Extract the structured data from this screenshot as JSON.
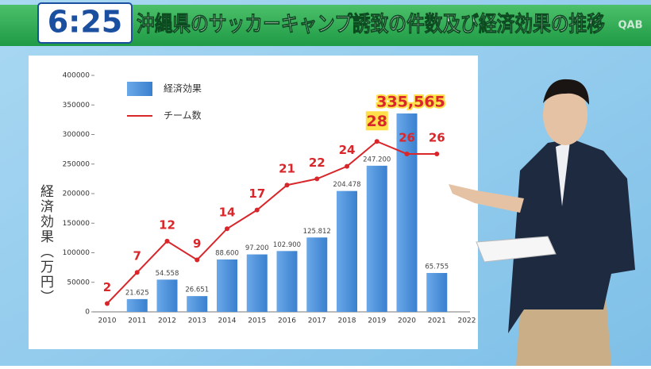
{
  "overlay": {
    "clock": "6:25",
    "logo": "QAB"
  },
  "chart_data": {
    "type": "bar-line",
    "title": "沖縄県のサッカーキャンプ誘致の件数及び経済効果の推移",
    "y_label": "経済効果（万円）",
    "categories": [
      "2010",
      "2011",
      "2012",
      "2013",
      "2014",
      "2015",
      "2016",
      "2017",
      "2018",
      "2019",
      "2020",
      "2021",
      "2022"
    ],
    "series": [
      {
        "name": "経済効果",
        "color": "#4a8fd8",
        "values": [
          null,
          21625,
          54558,
          26651,
          88600,
          97200,
          102900,
          125812,
          204478,
          247200,
          335565,
          65755,
          null
        ],
        "value_labels": [
          null,
          "21.625",
          "54.558",
          "26.651",
          "88.600",
          "97.200",
          "102.900",
          "125.812",
          "204.478",
          "247.200",
          "335,565",
          "65.755",
          null
        ]
      },
      {
        "name": "チーム数",
        "color": "#d8262a",
        "axis": "y2",
        "values": [
          2,
          7,
          12,
          9,
          14,
          17,
          21,
          22,
          24,
          28,
          26,
          26,
          null
        ]
      }
    ],
    "ylim": [
      0,
      400000
    ],
    "yticks": [
      0,
      50000,
      100000,
      150000,
      200000,
      250000,
      300000,
      350000,
      400000
    ],
    "y2lim": [
      0.66,
      38.6
    ],
    "legend": "upper-left",
    "grid": false
  }
}
